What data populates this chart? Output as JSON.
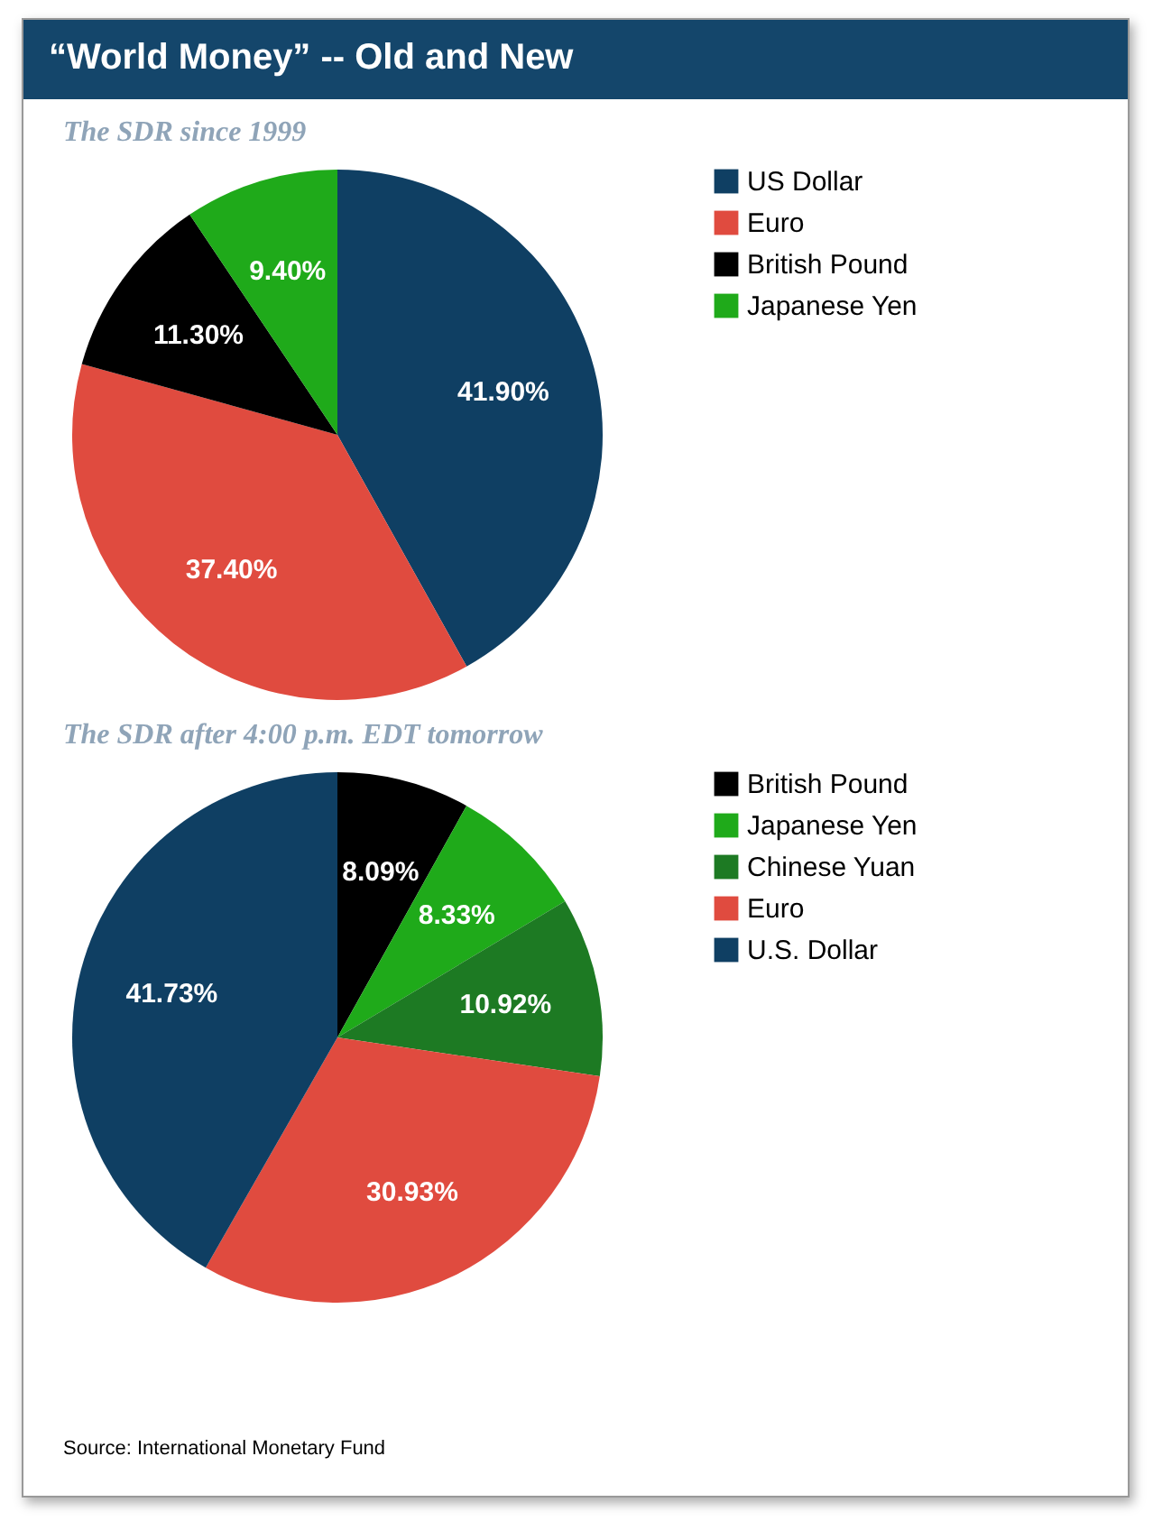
{
  "chart_data": [
    {
      "type": "pie",
      "title": "“World Money” -- Old and New",
      "subtitle": "The SDR since 1999",
      "categories": [
        "US Dollar",
        "Euro",
        "British Pound",
        "Japanese Yen"
      ],
      "values": [
        41.9,
        37.4,
        11.3,
        9.4
      ],
      "value_labels": [
        "41.90%",
        "37.40%",
        "11.30%",
        "9.40%"
      ],
      "colors": [
        "#0f3f63",
        "#e04b3f",
        "#000000",
        "#1faa1a"
      ],
      "legend": "right"
    },
    {
      "type": "pie",
      "subtitle": "The SDR after 4:00 p.m. EDT tomorrow",
      "categories": [
        "British Pound",
        "Japanese Yen",
        "Chinese Yuan",
        "Euro",
        "U.S. Dollar"
      ],
      "values": [
        8.09,
        8.33,
        10.92,
        30.93,
        41.73
      ],
      "value_labels": [
        "8.09%",
        "8.33%",
        "10.92%",
        "30.93%",
        "41.73%"
      ],
      "colors": [
        "#000000",
        "#1faa1a",
        "#1d7a23",
        "#e04b3f",
        "#0f3f63"
      ],
      "legend": "right",
      "annotations": [
        "Source: International Monetary Fund"
      ]
    }
  ]
}
